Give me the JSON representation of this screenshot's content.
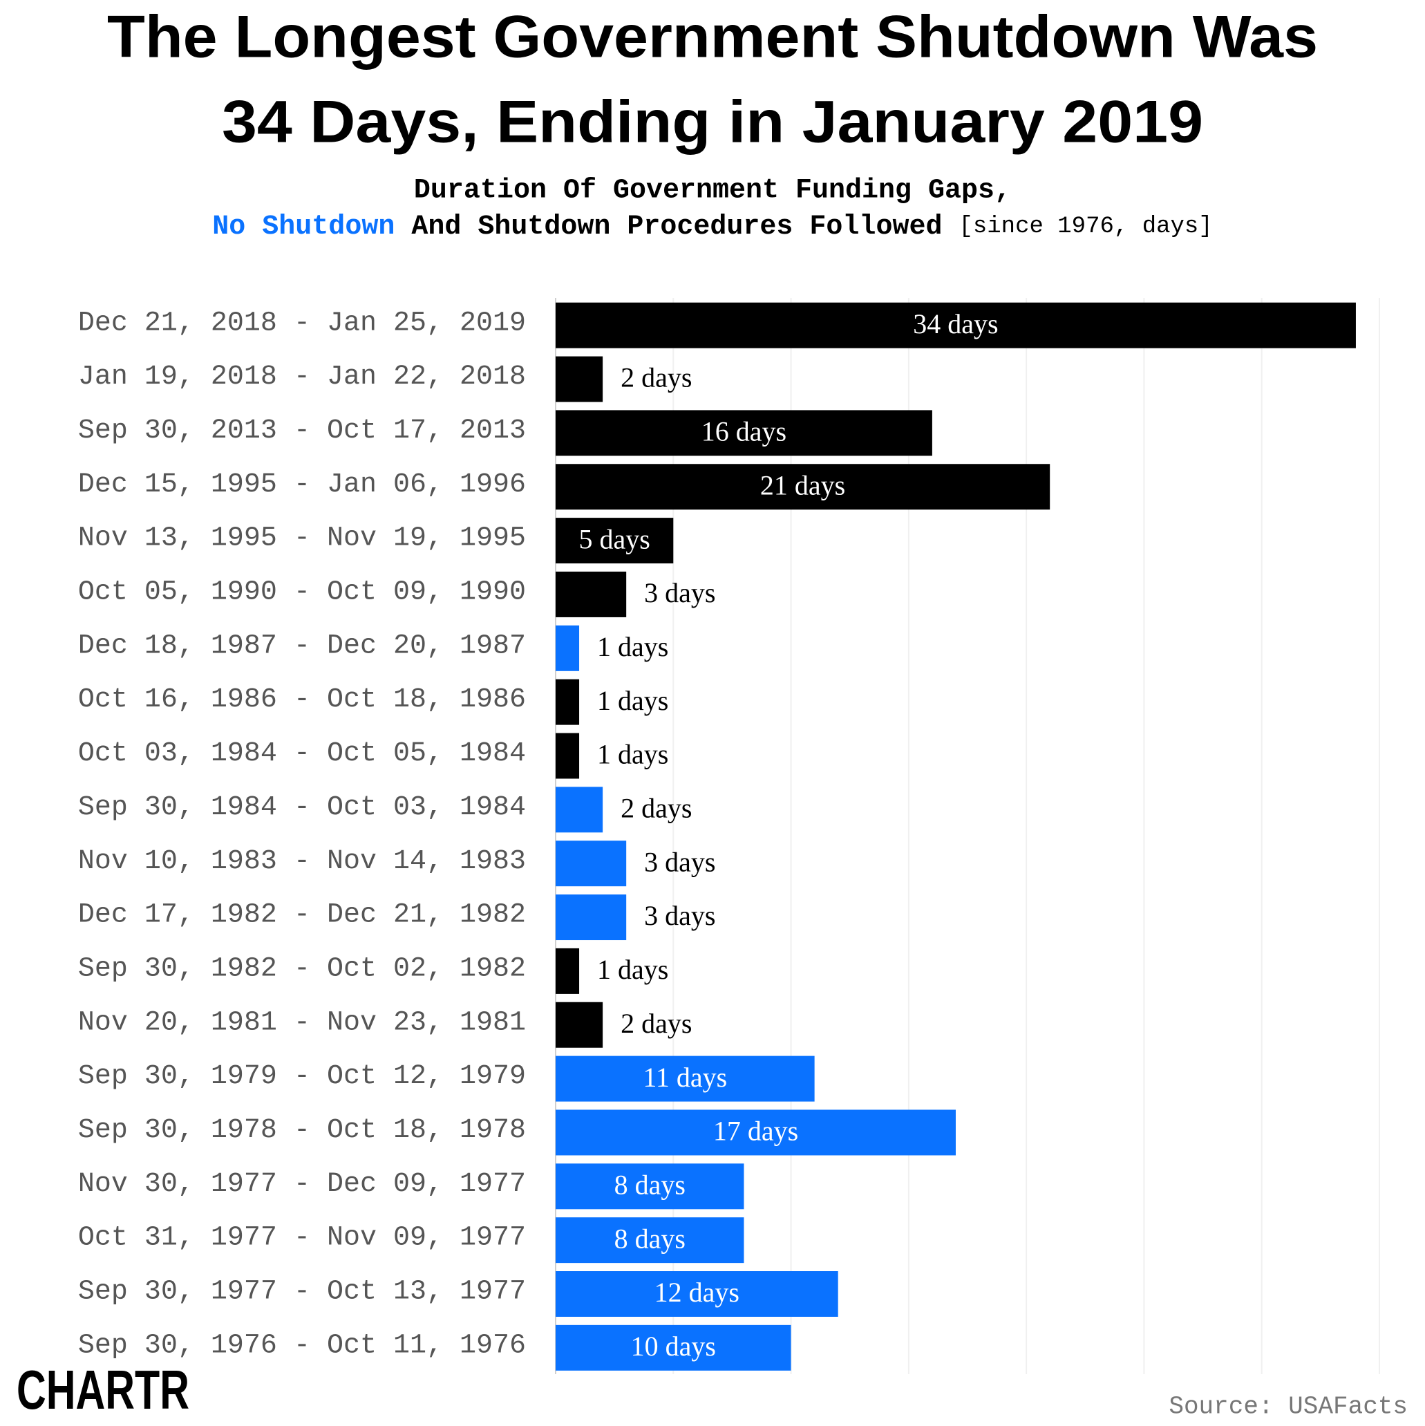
{
  "chart_data": {
    "type": "barh",
    "title": [
      "The Longest Government Shutdown Was",
      "34 Days, Ending in January 2019"
    ],
    "subtitle": "Duration Of Government Funding Gaps,",
    "subtitle_legend": [
      {
        "text": "No Shutdown",
        "color": "#0a72ff"
      },
      {
        "text": "And Shutdown Procedures Followed",
        "color": "#000000"
      }
    ],
    "subtitle_note": "[since 1976, days]",
    "categories": [
      "Dec 21, 2018 - Jan 25, 2019",
      "Jan 19, 2018 - Jan 22, 2018",
      "Sep 30, 2013 - Oct 17, 2013",
      "Dec 15, 1995 - Jan 06, 1996",
      "Nov 13, 1995 - Nov 19, 1995",
      "Oct 05, 1990 - Oct 09, 1990",
      "Dec 18, 1987 - Dec 20, 1987",
      "Oct 16, 1986 - Oct 18, 1986",
      "Oct 03, 1984 - Oct 05, 1984",
      "Sep 30, 1984 - Oct 03, 1984",
      "Nov 10, 1983 - Nov 14, 1983",
      "Dec 17, 1982 - Dec 21, 1982",
      "Sep 30, 1982 - Oct 02, 1982",
      "Nov 20, 1981 - Nov 23, 1981",
      "Sep 30, 1979 - Oct 12, 1979",
      "Sep 30, 1978 - Oct 18, 1978",
      "Nov 30, 1977 - Dec 09, 1977",
      "Oct 31, 1977 - Nov 09, 1977",
      "Sep 30, 1977 - Oct 13, 1977",
      "Sep 30, 1976 - Oct 11, 1976"
    ],
    "values": [
      34,
      2,
      16,
      21,
      5,
      3,
      1,
      1,
      1,
      2,
      3,
      3,
      1,
      2,
      11,
      17,
      8,
      8,
      12,
      10
    ],
    "value_labels": [
      "34 days",
      "2 days",
      "16 days",
      "21 days",
      "5 days",
      "3 days",
      "1 days",
      "1 days",
      "1 days",
      "2 days",
      "3 days",
      "3 days",
      "1 days",
      "2 days",
      "11 days",
      "17 days",
      "8 days",
      "8 days",
      "12 days",
      "10 days"
    ],
    "colors": [
      "#000000",
      "#000000",
      "#000000",
      "#000000",
      "#000000",
      "#000000",
      "#0a72ff",
      "#000000",
      "#000000",
      "#0a72ff",
      "#0a72ff",
      "#0a72ff",
      "#000000",
      "#000000",
      "#0a72ff",
      "#0a72ff",
      "#0a72ff",
      "#0a72ff",
      "#0a72ff",
      "#0a72ff"
    ],
    "xlim": [
      0,
      35
    ],
    "xticks": [
      0,
      5,
      10,
      15,
      20,
      25,
      30,
      35
    ],
    "grid": true,
    "source": "Source: USAFacts",
    "logo": "CHARTR"
  }
}
